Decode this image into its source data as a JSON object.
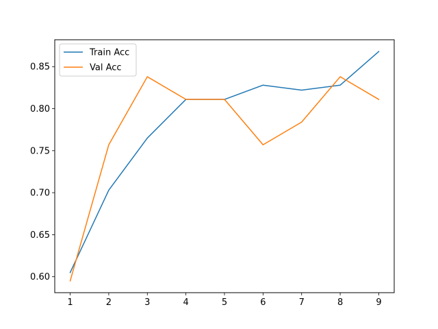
{
  "chart_data": {
    "type": "line",
    "x": [
      1,
      2,
      3,
      4,
      5,
      6,
      7,
      8,
      9
    ],
    "series": [
      {
        "name": "Train Acc",
        "color": "#1f77b4",
        "values": [
          0.605,
          0.703,
          0.765,
          0.811,
          0.811,
          0.828,
          0.822,
          0.828,
          0.868
        ]
      },
      {
        "name": "Val Acc",
        "color": "#ff7f0e",
        "values": [
          0.595,
          0.757,
          0.838,
          0.811,
          0.811,
          0.757,
          0.784,
          0.838,
          0.811
        ]
      }
    ],
    "title": "",
    "xlabel": "",
    "ylabel": "",
    "xlim": [
      0.6,
      9.4
    ],
    "ylim": [
      0.581,
      0.882
    ],
    "xticks": [
      1,
      2,
      3,
      4,
      5,
      6,
      7,
      8,
      9
    ],
    "xtick_labels": [
      "1",
      "2",
      "3",
      "4",
      "5",
      "6",
      "7",
      "8",
      "9"
    ],
    "yticks": [
      0.6,
      0.65,
      0.7,
      0.75,
      0.8,
      0.85
    ],
    "ytick_labels": [
      "0.60",
      "0.65",
      "0.70",
      "0.75",
      "0.80",
      "0.85"
    ],
    "grid": false,
    "legend_position": "upper-left"
  }
}
